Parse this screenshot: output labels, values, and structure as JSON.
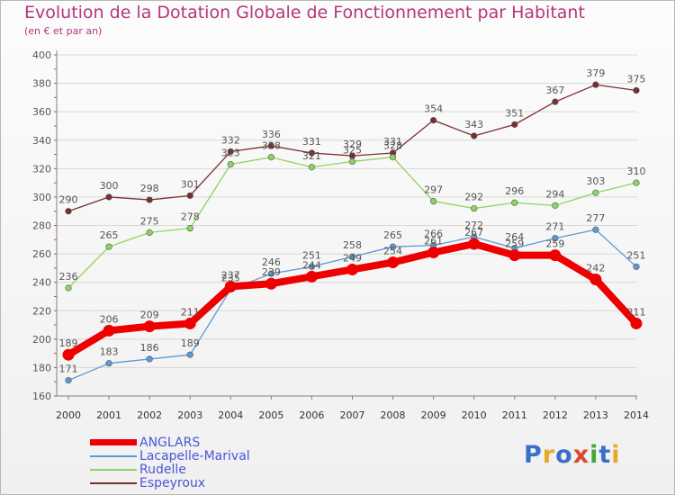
{
  "header": {
    "title": "Evolution de la Dotation Globale de Fonctionnement par Habitant",
    "subtitle": "(en € et par an)"
  },
  "logo": {
    "text": "Proxiti",
    "colors": [
      "#3a6fc9",
      "#e8a82a",
      "#3a6fc9",
      "#d64a2c",
      "#46a43c",
      "#3a6fc9",
      "#e8a82a"
    ]
  },
  "colors": {
    "ANGLARS": "#ee0000",
    "Lacapelle-Marival": "#5b9bd5",
    "Rudelle": "#8fd460",
    "Espeyroux": "#7a2e32",
    "axis": "#808080",
    "grid": "#d8d8d8",
    "label": "#555555"
  },
  "chart_data": {
    "type": "line",
    "title": "Evolution de la Dotation Globale de Fonctionnement par Habitant",
    "subtitle": "(en € et par an)",
    "x": [
      "2000",
      "2001",
      "2002",
      "2003",
      "2004",
      "2005",
      "2006",
      "2007",
      "2008",
      "2009",
      "2010",
      "2011",
      "2012",
      "2013",
      "2014"
    ],
    "ylim": [
      160,
      400
    ],
    "yticks": [
      160,
      180,
      200,
      220,
      240,
      260,
      280,
      300,
      320,
      340,
      360,
      380,
      400
    ],
    "grid": true,
    "legend_position": "bottom-left",
    "series": [
      {
        "name": "ANGLARS",
        "values": [
          189,
          206,
          209,
          211,
          237,
          239,
          244,
          249,
          254,
          261,
          267,
          259,
          259,
          242,
          211
        ]
      },
      {
        "name": "Lacapelle-Marival",
        "values": [
          171,
          183,
          186,
          189,
          235,
          246,
          251,
          258,
          265,
          266,
          272,
          264,
          271,
          277,
          251
        ]
      },
      {
        "name": "Rudelle",
        "values": [
          236,
          265,
          275,
          278,
          323,
          328,
          321,
          325,
          328,
          297,
          292,
          296,
          294,
          303,
          310
        ]
      },
      {
        "name": "Espeyroux",
        "values": [
          290,
          300,
          298,
          301,
          332,
          336,
          331,
          329,
          331,
          354,
          343,
          351,
          367,
          379,
          375
        ]
      }
    ]
  }
}
